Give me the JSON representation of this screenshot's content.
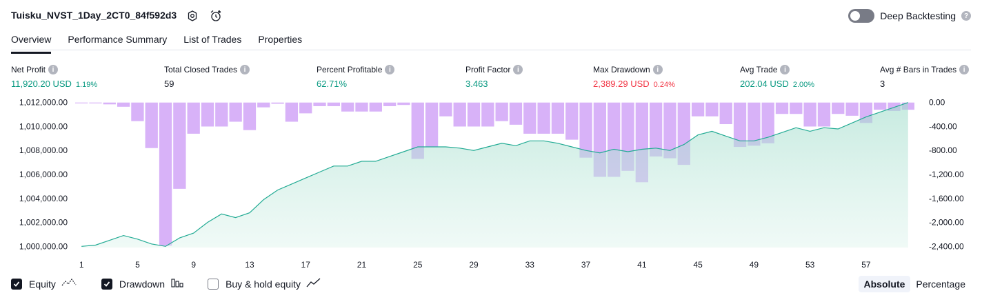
{
  "title": "Tuisku_NVST_1Day_2CT0_84f592d3",
  "icons": {
    "settings": "gear-icon",
    "alert": "alarm-clock-plus-icon"
  },
  "deep_backtesting": {
    "label": "Deep Backtesting",
    "enabled": false,
    "help": "?"
  },
  "tabs": [
    {
      "label": "Overview",
      "active": true
    },
    {
      "label": "Performance Summary",
      "active": false
    },
    {
      "label": "List of Trades",
      "active": false
    },
    {
      "label": "Properties",
      "active": false
    }
  ],
  "metrics": {
    "net_profit": {
      "label": "Net Profit",
      "value": "11,920.20 USD",
      "pct": "1.19%"
    },
    "total_closed_trades": {
      "label": "Total Closed Trades",
      "value": "59"
    },
    "percent_profitable": {
      "label": "Percent Profitable",
      "value": "62.71%"
    },
    "profit_factor": {
      "label": "Profit Factor",
      "value": "3.463"
    },
    "max_drawdown": {
      "label": "Max Drawdown",
      "value": "2,389.29 USD",
      "pct": "0.24%"
    },
    "avg_trade": {
      "label": "Avg Trade",
      "value": "202.04 USD",
      "pct": "2.00%"
    },
    "avg_bars": {
      "label": "Avg # Bars in Trades",
      "value": "3"
    }
  },
  "info_icon_text": "i",
  "chart_data": {
    "type": "area",
    "x": [
      1,
      2,
      3,
      4,
      5,
      6,
      7,
      8,
      9,
      10,
      11,
      12,
      13,
      14,
      15,
      16,
      17,
      18,
      19,
      20,
      21,
      22,
      23,
      24,
      25,
      26,
      27,
      28,
      29,
      30,
      31,
      32,
      33,
      34,
      35,
      36,
      37,
      38,
      39,
      40,
      41,
      42,
      43,
      44,
      45,
      46,
      47,
      48,
      49,
      50,
      51,
      52,
      53,
      54,
      55,
      56,
      57,
      58,
      59,
      60
    ],
    "x_ticks": [
      "1",
      "5",
      "9",
      "13",
      "17",
      "21",
      "25",
      "29",
      "33",
      "37",
      "41",
      "45",
      "49",
      "53",
      "57"
    ],
    "left_axis": {
      "ticks": [
        "1,012,000.00",
        "1,010,000.00",
        "1,008,000.00",
        "1,006,000.00",
        "1,004,000.00",
        "1,002,000.00",
        "1,000,000.00"
      ],
      "range": [
        999900,
        1012100
      ]
    },
    "right_axis": {
      "ticks": [
        "0.00",
        "-400.00",
        "-800.00",
        "-1,200.00",
        "-1,600.00",
        "-2,000.00",
        "-2,400.00"
      ],
      "range": [
        -2420,
        20
      ]
    },
    "series": [
      {
        "name": "Equity",
        "color": "#22ab94",
        "values": [
          1000000,
          1000100,
          1000500,
          1000900,
          1000600,
          1000200,
          1000000,
          1000700,
          1001100,
          1002000,
          1002700,
          1002400,
          1002800,
          1003900,
          1004700,
          1005200,
          1005700,
          1006200,
          1006700,
          1006700,
          1007100,
          1007100,
          1007500,
          1007900,
          1008300,
          1008300,
          1008300,
          1008200,
          1008000,
          1008300,
          1008600,
          1008400,
          1008800,
          1008800,
          1008600,
          1008300,
          1008000,
          1007800,
          1008100,
          1007900,
          1008100,
          1008200,
          1008000,
          1008500,
          1009300,
          1009600,
          1009200,
          1008800,
          1008800,
          1009100,
          1009500,
          1009900,
          1009600,
          1009900,
          1009800,
          1010300,
          1010800,
          1011200,
          1011600,
          1012000
        ]
      },
      {
        "name": "Drawdown",
        "color": "#d1a4f7",
        "values": [
          0,
          -10,
          -30,
          -70,
          -310,
          -760,
          -2389,
          -1440,
          -520,
          -400,
          -400,
          -320,
          -460,
          -80,
          -20,
          -320,
          -180,
          -60,
          -60,
          -150,
          -150,
          -150,
          -60,
          -40,
          -940,
          -740,
          -230,
          -400,
          -400,
          -400,
          -310,
          -370,
          -520,
          -520,
          -520,
          -620,
          -920,
          -1240,
          -1240,
          -1140,
          -1330,
          -900,
          -930,
          -1040,
          -230,
          -230,
          -360,
          -740,
          -720,
          -680,
          -190,
          -190,
          -400,
          -400,
          -190,
          -220,
          -340,
          -120,
          -140,
          -120
        ]
      }
    ]
  },
  "legend": [
    {
      "label": "Equity",
      "checked": true,
      "icon": "equity-line-icon"
    },
    {
      "label": "Drawdown",
      "checked": true,
      "icon": "drawdown-bars-icon"
    },
    {
      "label": "Buy & hold equity",
      "checked": false,
      "icon": "buy-hold-line-icon"
    }
  ],
  "scale_toggle": {
    "absolute": "Absolute",
    "percentage": "Percentage",
    "selected": "Absolute"
  }
}
